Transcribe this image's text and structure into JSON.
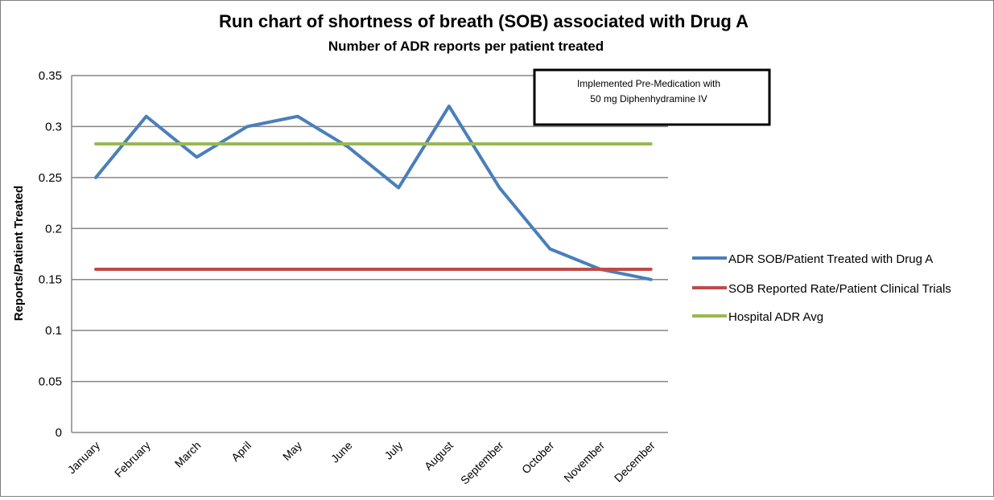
{
  "chart_data": {
    "type": "line",
    "title": "Run chart of shortness of breath (SOB) associated with Drug A",
    "subtitle": "Number of ADR reports per patient treated",
    "xlabel": "",
    "ylabel": "Reports/Patient Treated",
    "categories": [
      "January",
      "February",
      "March",
      "April",
      "May",
      "June",
      "July",
      "August",
      "September",
      "October",
      "November",
      "December"
    ],
    "ylim": [
      0,
      0.35
    ],
    "yticks": [
      0,
      0.05,
      0.1,
      0.15,
      0.2,
      0.25,
      0.3,
      0.35
    ],
    "ytick_labels": [
      "0",
      "0.05",
      "0.1",
      "0.15",
      "0.2",
      "0.25",
      "0.3",
      "0.35"
    ],
    "grid": true,
    "legend_position": "right",
    "series": [
      {
        "name": "ADR SOB/Patient Treated with Drug A",
        "color": "#4a7ebb",
        "values": [
          0.25,
          0.31,
          0.27,
          0.3,
          0.31,
          0.28,
          0.24,
          0.32,
          0.24,
          0.18,
          0.16,
          0.15
        ]
      },
      {
        "name": "SOB Reported Rate/Patient Clinical Trials",
        "color": "#be4b48",
        "values": [
          0.16,
          0.16,
          0.16,
          0.16,
          0.16,
          0.16,
          0.16,
          0.16,
          0.16,
          0.16,
          0.16,
          0.16
        ]
      },
      {
        "name": "Hospital ADR Avg",
        "color": "#98b954",
        "values": [
          0.283,
          0.283,
          0.283,
          0.283,
          0.283,
          0.283,
          0.283,
          0.283,
          0.283,
          0.283,
          0.283,
          0.283
        ]
      }
    ],
    "annotation": {
      "lines": [
        "Implemented Pre-Medication with",
        "50 mg Diphenhydramine IV"
      ]
    }
  }
}
